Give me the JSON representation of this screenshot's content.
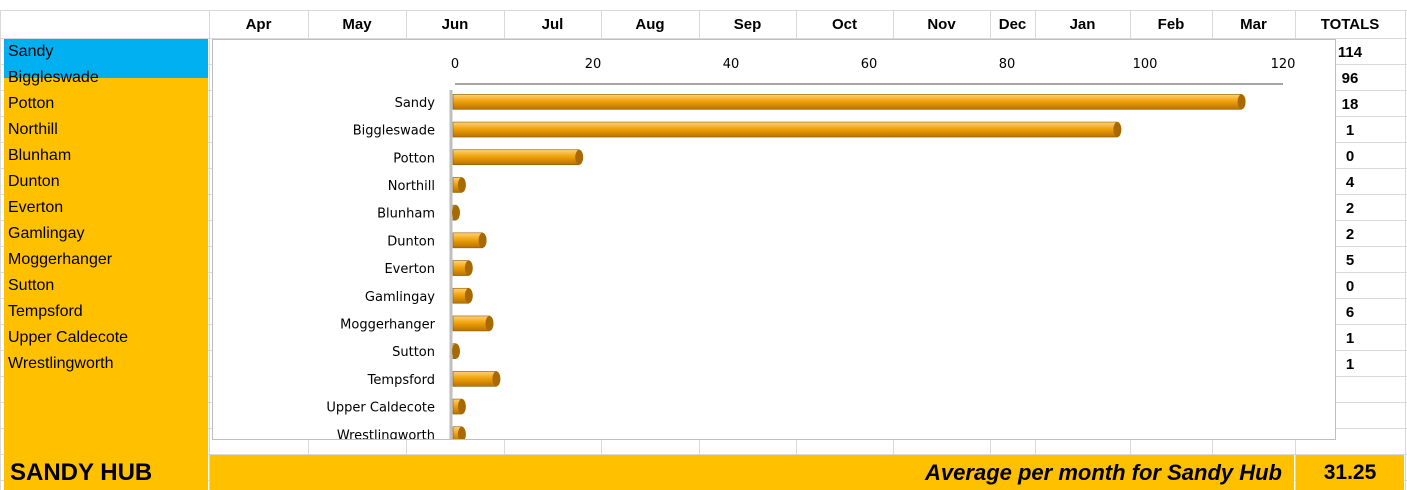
{
  "months": [
    "Apr",
    "May",
    "Jun",
    "Jul",
    "Aug",
    "Sep",
    "Oct",
    "Nov",
    "Dec",
    "Jan",
    "Feb",
    "Mar"
  ],
  "totals_header": "TOTALS",
  "locations": [
    "Sandy",
    "Biggleswade",
    "Potton",
    "Northill",
    "Blunham",
    "Dunton",
    "Everton",
    "Gamlingay",
    "Moggerhanger",
    "Sutton",
    "Tempsford",
    "Upper Caldecote",
    "Wrestlingworth"
  ],
  "totals": [
    114,
    96,
    18,
    1,
    0,
    4,
    2,
    2,
    5,
    0,
    6,
    1,
    1
  ],
  "footer": {
    "hub_label": "SANDY HUB",
    "avg_label": "Average per month for Sandy Hub",
    "avg_value": "31.25"
  },
  "colors": {
    "bar": "#f0a30a",
    "bar_end": "#a86a00",
    "row_fill": "#ffc000",
    "selected_fill": "#00b0f0"
  },
  "chart_data": {
    "type": "bar",
    "orientation": "horizontal",
    "categories": [
      "Sandy",
      "Biggleswade",
      "Potton",
      "Northill",
      "Blunham",
      "Dunton",
      "Everton",
      "Gamlingay",
      "Moggerhanger",
      "Sutton",
      "Tempsford",
      "Upper Caldecote",
      "Wrestlingworth"
    ],
    "values": [
      114,
      96,
      18,
      1,
      0,
      4,
      2,
      2,
      5,
      0,
      6,
      1,
      1
    ],
    "xlim": [
      0,
      120
    ],
    "x_ticks": [
      0,
      20,
      40,
      60,
      80,
      100,
      120
    ],
    "x_axis_position": "top",
    "legend": "none",
    "grid": false
  }
}
